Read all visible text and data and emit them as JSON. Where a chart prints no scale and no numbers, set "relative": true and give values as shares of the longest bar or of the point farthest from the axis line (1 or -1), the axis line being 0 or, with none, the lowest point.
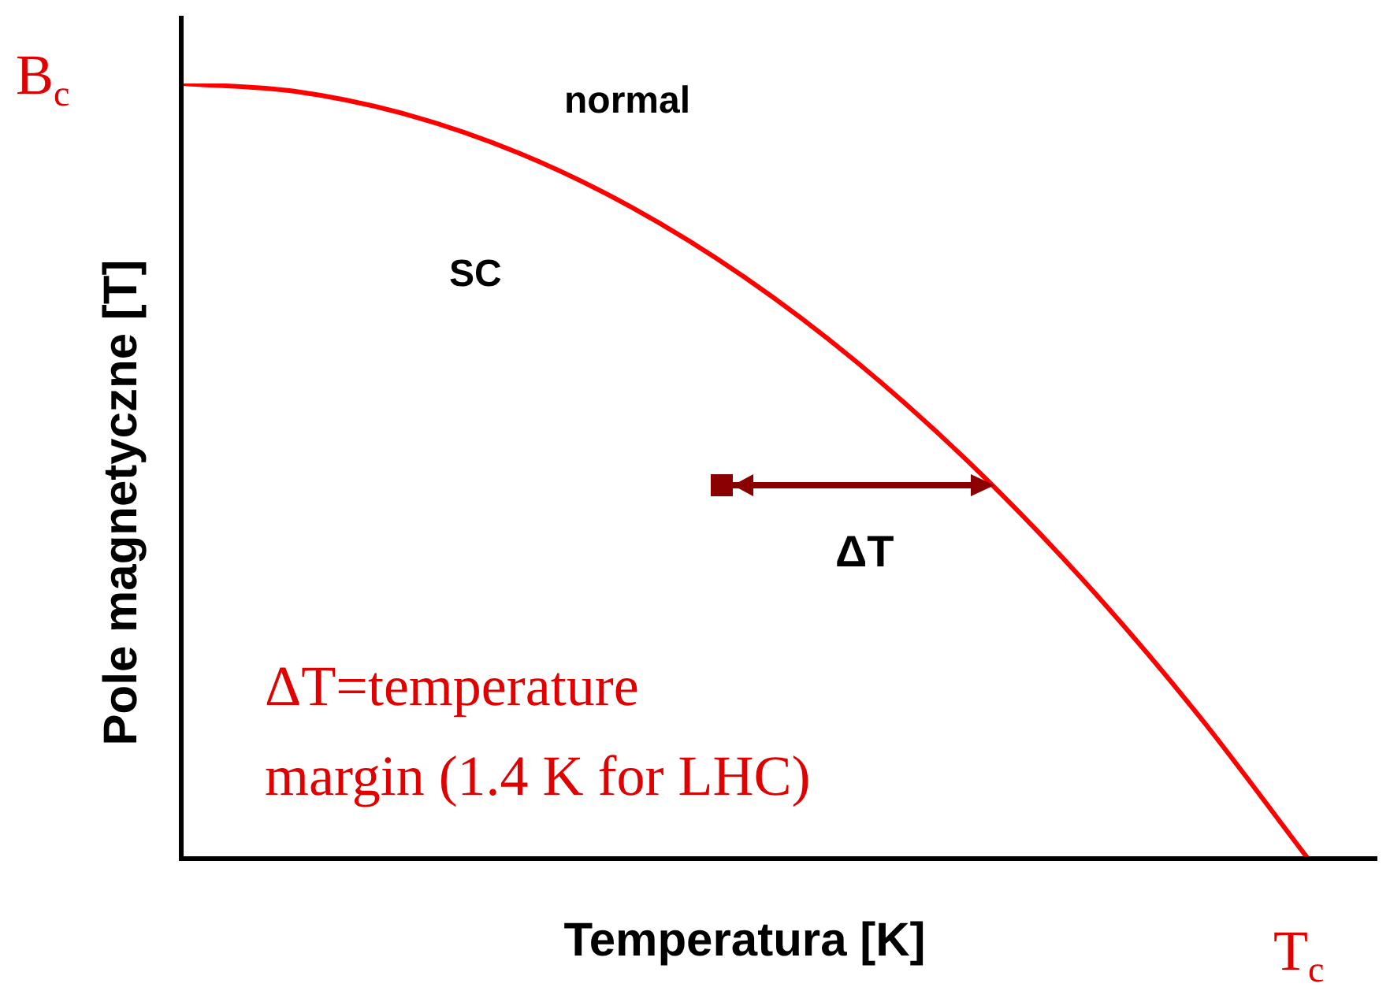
{
  "chart_data": {
    "type": "line",
    "relative": true,
    "xlabel": "Temperatura [K]",
    "ylabel": "Pole magnetyczne [T]",
    "categories": [
      null,
      null,
      null,
      null,
      null,
      null,
      null,
      null,
      null,
      null,
      null
    ],
    "series": [
      {
        "color": "#ff0000",
        "values": [
          1,
          0.99,
          0.96,
          0.91,
          0.84,
          0.75,
          0.64,
          0.51,
          0.36,
          0.19,
          0
        ]
      }
    ],
    "annotations": [
      "normal",
      "SC",
      "ΔT",
      "ΔT=temperature margin (1.4 K for LHC)",
      "B$_{c}$",
      "T$_{c}$"
    ],
    "marker": "none",
    "line_style": "solid",
    "legend": false
  }
}
